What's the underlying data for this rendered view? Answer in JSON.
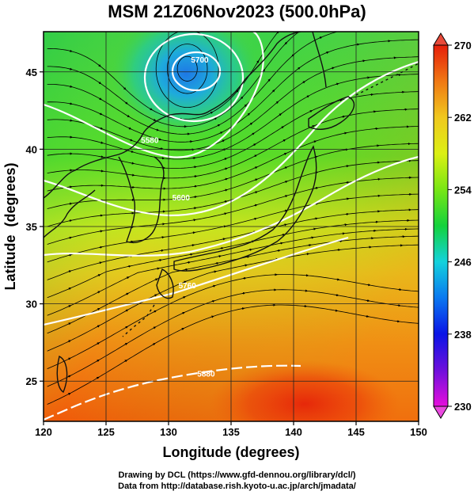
{
  "title": "MSM 21Z06Nov2023 (500.0hPa)",
  "credits": {
    "line1": "Drawing by DCL (https://www.gfd-dennou.org/library/dcl/)",
    "line2": "Data from http://database.rish.kyoto-u.ac.jp/arch/jmadata/"
  },
  "chart_data": {
    "type": "heatmap",
    "title": "MSM 21Z06Nov2023 (500.0hPa)",
    "xlabel": "Longitude (degrees)",
    "ylabel": "Latitude  (degrees)",
    "xlim": [
      120,
      150
    ],
    "ylim": [
      22.4,
      47.6
    ],
    "x_ticks": [
      "120",
      "125",
      "130",
      "135",
      "140",
      "145",
      "150"
    ],
    "y_ticks": [
      "25",
      "30",
      "35",
      "40",
      "45"
    ],
    "grid": true,
    "field": "temperature (K)",
    "overlays": [
      "streamlines",
      "geopotential height contours",
      "coastlines"
    ],
    "colorbar": {
      "range": [
        230,
        270
      ],
      "tick_labels": [
        "270",
        "262",
        "254",
        "246",
        "238",
        "230"
      ],
      "extend": "both",
      "colors": [
        "#e60fdc",
        "#6e10dc",
        "#0a14e6",
        "#0a78f0",
        "#14d2dc",
        "#14d23c",
        "#78e614",
        "#dcf014",
        "#f0c81e",
        "#f07814",
        "#e61e0a"
      ]
    },
    "low_center": {
      "lon": 131.5,
      "lat": 45.2
    },
    "contour_labels": [
      "5700",
      "5580",
      "5600",
      "5760",
      "5880"
    ],
    "temperature_samples": [
      {
        "lon": 131.5,
        "lat": 45.2,
        "value": 246
      },
      {
        "lon": 125,
        "lat": 46,
        "value": 253
      },
      {
        "lon": 145,
        "lat": 46,
        "value": 255
      },
      {
        "lon": 122,
        "lat": 40,
        "value": 254
      },
      {
        "lon": 145,
        "lat": 38,
        "value": 258
      },
      {
        "lon": 124,
        "lat": 32,
        "value": 257
      },
      {
        "lon": 140,
        "lat": 30,
        "value": 262
      },
      {
        "lon": 148,
        "lat": 32,
        "value": 263
      },
      {
        "lon": 125,
        "lat": 24,
        "value": 263
      },
      {
        "lon": 140,
        "lat": 24,
        "value": 266
      }
    ]
  }
}
